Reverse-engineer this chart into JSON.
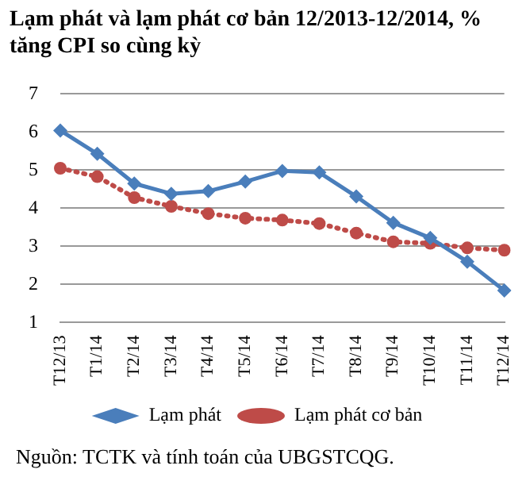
{
  "chart_data": {
    "type": "line",
    "title": "Lạm phát và lạm phát cơ bản 12/2013-12/2014, % tăng CPI so cùng kỳ",
    "categories": [
      "T12/13",
      "T1/14",
      "T2/14",
      "T3/14",
      "T4/14",
      "T5/14",
      "T6/14",
      "T7/14",
      "T8/14",
      "T9/14",
      "T10/14",
      "T11/14",
      "T12/14"
    ],
    "series": [
      {
        "name": "Lạm phát",
        "color": "#4a7ebb",
        "marker": "diamond",
        "line_style": "solid",
        "values": [
          6.04,
          5.43,
          4.65,
          4.38,
          4.45,
          4.7,
          4.98,
          4.94,
          4.31,
          3.62,
          3.22,
          2.6,
          1.84
        ]
      },
      {
        "name": "Lạm phát cơ bản",
        "color": "#be4b48",
        "marker": "circle",
        "line_style": "dotted",
        "values": [
          5.05,
          4.83,
          4.28,
          4.05,
          3.86,
          3.74,
          3.69,
          3.6,
          3.35,
          3.12,
          3.08,
          2.96,
          2.9
        ]
      }
    ],
    "ylim": [
      1,
      7
    ],
    "yticks": [
      1,
      2,
      3,
      4,
      5,
      6,
      7
    ],
    "grid": "y",
    "legend": "bottom",
    "annotations": [
      "Nguồn: TCTK và tính toán của UBGSTCQG."
    ]
  }
}
